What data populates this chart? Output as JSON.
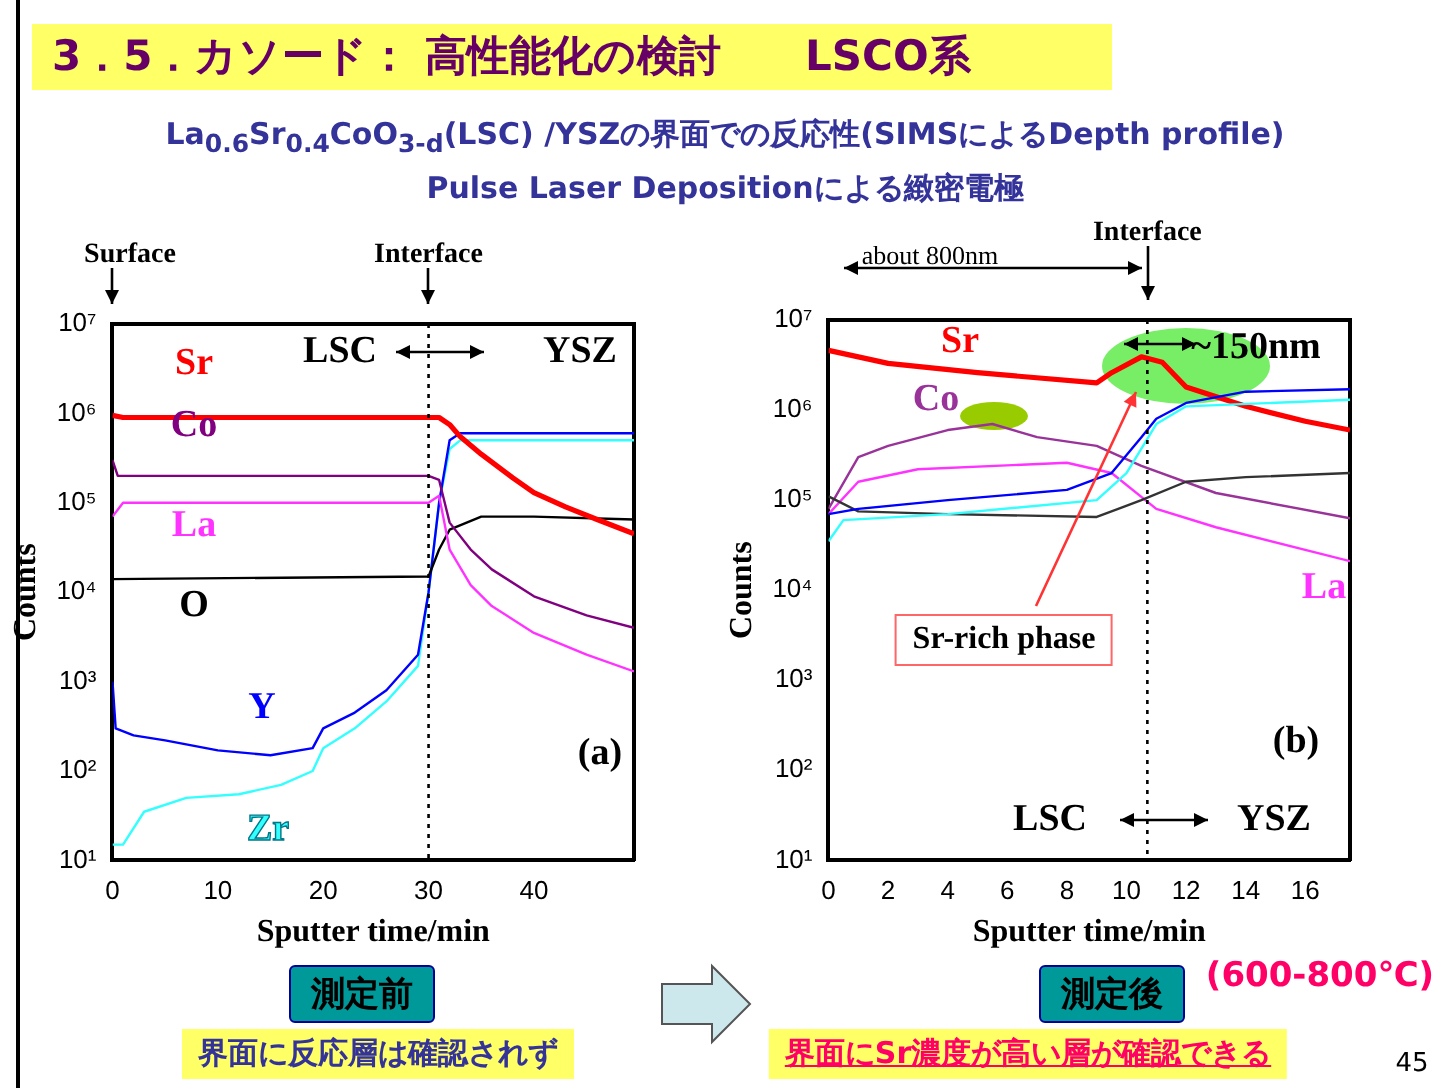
{
  "chart_data": [
    {
      "type": "line",
      "title": "3．5．カソード： 高性能化の検討　　LSCO系",
      "subtitle": "La$_{0.6}$Sr$_{0.4}$CoO$_{3-d}$(LSC) /YSZの界面での反応性(SIMSによるDepth profile)\nPulse Laser Depositionによる緻密電極",
      "xlabel": "Sputter time/min",
      "ylabel": "Counts",
      "log": "y",
      "marker": "none",
      "xlim": [
        0,
        49.5
      ],
      "xticks": [
        0,
        10,
        20,
        30,
        40
      ],
      "ylim": [
        10,
        10000000
      ],
      "yticks": [
        {
          "value": 10,
          "label": "10¹"
        },
        {
          "value": 100,
          "label": "10²"
        },
        {
          "value": 1000,
          "label": "10³"
        },
        {
          "value": 10000,
          "label": "10⁴"
        },
        {
          "value": 100000,
          "label": "10⁵"
        },
        {
          "value": 1000000,
          "label": "10⁶"
        },
        {
          "value": 10000000,
          "label": "10⁷"
        }
      ],
      "ref_lines": [
        {
          "axis": "x",
          "value": 30,
          "label": "Interface",
          "line_style": "dotted",
          "color": "#000000"
        }
      ],
      "annotations": [
        "Surface",
        "LSC",
        "YSZ",
        "(a)",
        "測定前",
        "界面に反応層は確認されず"
      ],
      "series": [
        {
          "name": "Sr",
          "color": "#ff0000",
          "x": [
            0,
            1,
            30,
            31,
            32,
            33,
            35,
            38,
            40,
            43,
            46,
            49.5
          ],
          "values": [
            950000,
            900000,
            900000,
            900000,
            750000,
            550000,
            350000,
            190000,
            130000,
            90000,
            65000,
            45000
          ]
        },
        {
          "name": "Co",
          "color": "#800080",
          "x": [
            0,
            0.5,
            30,
            31,
            32,
            34,
            36,
            40,
            45,
            49.5
          ],
          "values": [
            300000,
            200000,
            200000,
            180000,
            60000,
            30000,
            18000,
            9000,
            5500,
            4000
          ]
        },
        {
          "name": "La",
          "color": "#ff33ff",
          "x": [
            0,
            1,
            30,
            31,
            32,
            34,
            36,
            40,
            45,
            49.5
          ],
          "values": [
            70000,
            100000,
            100000,
            120000,
            30000,
            12000,
            7000,
            3500,
            2000,
            1300
          ]
        },
        {
          "name": "O",
          "color": "#000000",
          "x": [
            0,
            30,
            31,
            32,
            35,
            40,
            49.5
          ],
          "values": [
            14000,
            15000,
            30000,
            50000,
            70000,
            70000,
            65000
          ]
        },
        {
          "name": "Y",
          "color": "#0000ff",
          "x": [
            0,
            0.3,
            2,
            5,
            10,
            15,
            19,
            20,
            23,
            26,
            29,
            30,
            31,
            32,
            33,
            49.5
          ],
          "values": [
            1000,
            300,
            250,
            220,
            170,
            150,
            180,
            300,
            450,
            800,
            2000,
            10000,
            100000,
            500000,
            600000,
            600000
          ]
        },
        {
          "name": "Zr",
          "color": "#33ffff",
          "x": [
            0,
            1,
            3,
            7,
            12,
            16,
            19,
            20,
            23,
            26,
            29,
            30,
            31,
            32,
            33,
            49.5
          ],
          "values": [
            15,
            15,
            35,
            50,
            55,
            70,
            100,
            180,
            300,
            600,
            1500,
            10000,
            100000,
            400000,
            500000,
            500000
          ]
        }
      ]
    },
    {
      "type": "line",
      "xlabel": "Sputter time/min",
      "ylabel": "Counts",
      "log": "y",
      "marker": "none",
      "xlim": [
        0,
        17.5
      ],
      "xticks": [
        0,
        2,
        4,
        6,
        8,
        10,
        12,
        14,
        16
      ],
      "ylim": [
        10,
        10000000
      ],
      "yticks": [
        {
          "value": 10,
          "label": "10¹"
        },
        {
          "value": 100,
          "label": "10²"
        },
        {
          "value": 1000,
          "label": "10³"
        },
        {
          "value": 10000,
          "label": "10⁴"
        },
        {
          "value": 100000,
          "label": "10⁵"
        },
        {
          "value": 1000000,
          "label": "10⁶"
        },
        {
          "value": 10000000,
          "label": "10⁷"
        }
      ],
      "ref_lines": [
        {
          "axis": "x",
          "value": 10.7,
          "label": "Interface",
          "line_style": "dotted",
          "color": "#000000"
        }
      ],
      "annotations": [
        "about 800nm",
        "~150nm",
        "Sr-rich phase",
        "LSC",
        "YSZ",
        "(b)",
        "測定後",
        "(600-800℃)",
        "界面にSr濃度が高い層が確認できる",
        "45"
      ],
      "series": [
        {
          "color": "#0000ff",
          "x": [
            0,
            1,
            4,
            8,
            9.5,
            10.5,
            11,
            12,
            14,
            17.5
          ],
          "values": [
            70000,
            80000,
            100000,
            130000,
            200000,
            500000,
            800000,
            1200000,
            1600000,
            1700000
          ]
        },
        {
          "color": "#33ffff",
          "x": [
            0,
            0.5,
            4,
            9,
            10,
            11,
            12,
            17.5
          ],
          "values": [
            35000,
            60000,
            70000,
            100000,
            200000,
            700000,
            1100000,
            1300000
          ]
        },
        {
          "color": "#333333",
          "x": [
            0,
            1,
            4,
            9,
            10.5,
            12,
            14,
            17.5
          ],
          "values": [
            110000,
            75000,
            70000,
            65000,
            100000,
            160000,
            180000,
            200000
          ]
        },
        {
          "name": "Co",
          "color": "#993399",
          "x": [
            0,
            1,
            2,
            4,
            5.5,
            7,
            9,
            10.5,
            13,
            17.5
          ],
          "values": [
            80000,
            300000,
            400000,
            600000,
            700000,
            500000,
            400000,
            240000,
            120000,
            63000
          ]
        },
        {
          "name": "La",
          "color": "#ff33ff",
          "x": [
            0,
            1,
            3,
            8,
            9.5,
            11,
            13,
            17.5
          ],
          "values": [
            70000,
            160000,
            220000,
            260000,
            200000,
            80000,
            50000,
            21000
          ]
        },
        {
          "name": "Sr",
          "color": "#ff0000",
          "x": [
            0,
            2,
            5,
            9,
            9.5,
            10.5,
            11.2,
            12,
            14,
            16,
            17.5
          ],
          "values": [
            4600000,
            3300000,
            2600000,
            2000000,
            2600000,
            3900000,
            3400000,
            1800000,
            1100000,
            750000,
            600000
          ]
        }
      ]
    }
  ]
}
